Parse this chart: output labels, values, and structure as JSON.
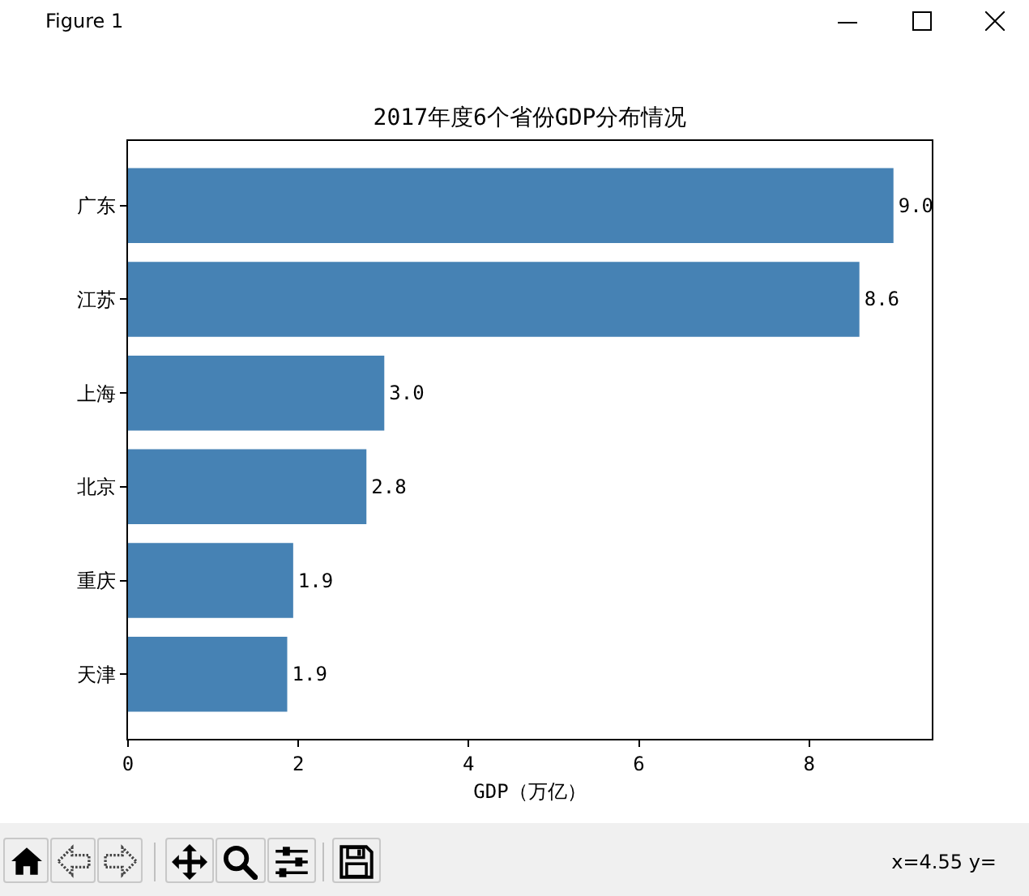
{
  "chart_data": {
    "type": "bar",
    "orientation": "horizontal",
    "title": "2017年度6个省份GDP分布情况",
    "xlabel": "GDP（万亿）",
    "categories": [
      "广东",
      "江苏",
      "上海",
      "北京",
      "重庆",
      "天津"
    ],
    "values": [
      8.99,
      8.59,
      3.01,
      2.8,
      1.94,
      1.87
    ],
    "value_labels": [
      "9.0",
      "8.6",
      "3.0",
      "2.8",
      "1.9",
      "1.9"
    ],
    "color": "#4682b4",
    "xlim": [
      0,
      9.44
    ],
    "xticks": [
      0,
      2,
      4,
      6,
      8
    ],
    "annotations": [
      "Figure 1",
      "x=4.55 y="
    ]
  }
}
